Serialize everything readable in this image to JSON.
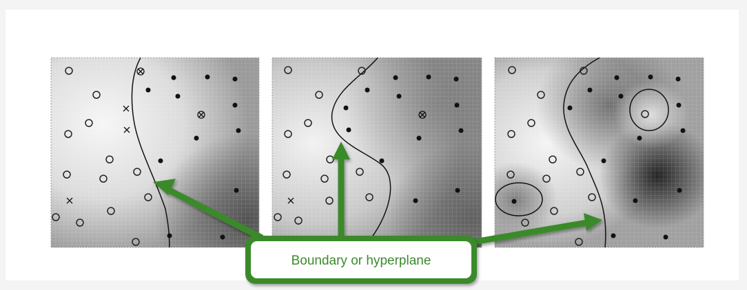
{
  "panels": [
    {
      "id": "left",
      "title": ""
    },
    {
      "id": "middle",
      "title": ""
    },
    {
      "id": "right",
      "title": ""
    }
  ],
  "callout": {
    "label": "Boundary or hyperplane"
  },
  "colors": {
    "arrow": "#3a8a2c",
    "callout_border": "#3a8a2c",
    "callout_text": "#3a8a2c",
    "point_class_a": "open-circle",
    "point_class_b": "filled-dot"
  }
}
